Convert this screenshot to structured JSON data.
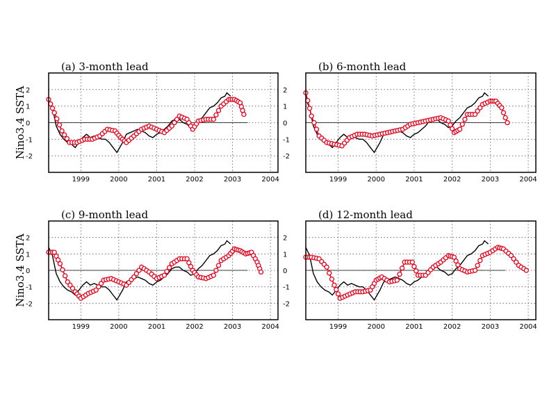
{
  "chart_data": [
    {
      "type": "line",
      "title": "(a) 3-month lead",
      "ylabel": "Nino3.4  SSTA",
      "xlim": [
        1998.15,
        2004.2
      ],
      "ylim": [
        -3,
        3
      ],
      "xticks": [
        1999,
        2000,
        2001,
        2002,
        2003,
        2004
      ],
      "yticks": [
        -2,
        -1,
        0,
        1,
        2
      ],
      "grid": true,
      "series": [
        {
          "role": "observed",
          "x": [
            1998.15,
            1998.25,
            1998.35,
            1998.45,
            1998.55,
            1998.65,
            1998.75,
            1998.85,
            1998.95,
            1999.05,
            1999.15,
            1999.25,
            1999.35,
            1999.45,
            1999.55,
            1999.65,
            1999.75,
            1999.85,
            1999.95,
            2000.0,
            2000.1,
            2000.2,
            2000.3,
            2000.4,
            2000.5,
            2000.6,
            2000.7,
            2000.8,
            2000.9,
            2001.0,
            2001.1,
            2001.2,
            2001.3,
            2001.4,
            2001.5,
            2001.6,
            2001.7,
            2001.8,
            2001.9,
            2002.0,
            2002.1,
            2002.2,
            2002.3,
            2002.4,
            2002.5,
            2002.6,
            2002.7,
            2002.8,
            2002.85,
            2002.95
          ],
          "y": [
            1.4,
            0.9,
            -0.2,
            -0.7,
            -1.0,
            -1.2,
            -1.3,
            -1.5,
            -1.2,
            -0.9,
            -0.7,
            -0.9,
            -0.8,
            -0.9,
            -1.0,
            -1.0,
            -1.2,
            -1.5,
            -1.8,
            -1.6,
            -1.2,
            -0.7,
            -0.6,
            -0.5,
            -0.4,
            -0.5,
            -0.6,
            -0.8,
            -0.9,
            -0.7,
            -0.6,
            -0.4,
            -0.2,
            0.1,
            0.2,
            0.2,
            0.0,
            -0.1,
            -0.3,
            -0.2,
            0.1,
            0.3,
            0.6,
            0.9,
            1.0,
            1.2,
            1.5,
            1.6,
            1.8,
            1.6
          ]
        },
        {
          "role": "forecast",
          "x": [
            1998.15,
            1998.3,
            1998.5,
            1998.7,
            1998.9,
            1999.1,
            1999.3,
            1999.5,
            1999.7,
            1999.9,
            2000.05,
            2000.2,
            2000.4,
            2000.6,
            2000.8,
            2001.0,
            2001.2,
            2001.4,
            2001.6,
            2001.8,
            2001.95,
            2002.1,
            2002.3,
            2002.5,
            2002.7,
            2002.9,
            2003.05,
            2003.2,
            2003.3
          ],
          "y": [
            1.4,
            0.6,
            -0.5,
            -1.2,
            -1.2,
            -1.0,
            -1.0,
            -0.8,
            -0.4,
            -0.5,
            -0.9,
            -1.2,
            -0.8,
            -0.4,
            -0.2,
            -0.4,
            -0.6,
            -0.2,
            0.4,
            0.2,
            -0.4,
            0.1,
            0.2,
            0.2,
            1.0,
            1.4,
            1.4,
            1.2,
            0.5
          ]
        }
      ]
    },
    {
      "type": "line",
      "title": "(b) 6-month lead",
      "ylabel": "",
      "xlim": [
        1998.15,
        2004.2
      ],
      "ylim": [
        -3,
        3
      ],
      "xticks": [
        1999,
        2000,
        2001,
        2002,
        2003,
        2004
      ],
      "yticks": [
        -2,
        -1,
        0,
        1,
        2
      ],
      "grid": true,
      "series": [
        {
          "role": "observed",
          "x": [
            1998.15,
            1998.25,
            1998.35,
            1998.45,
            1998.55,
            1998.65,
            1998.75,
            1998.85,
            1998.95,
            1999.05,
            1999.15,
            1999.25,
            1999.35,
            1999.45,
            1999.55,
            1999.65,
            1999.75,
            1999.85,
            1999.95,
            2000.0,
            2000.1,
            2000.2,
            2000.3,
            2000.4,
            2000.5,
            2000.6,
            2000.7,
            2000.8,
            2000.9,
            2001.0,
            2001.1,
            2001.2,
            2001.3,
            2001.4,
            2001.5,
            2001.6,
            2001.7,
            2001.8,
            2001.9,
            2002.0,
            2002.1,
            2002.2,
            2002.3,
            2002.4,
            2002.5,
            2002.6,
            2002.7,
            2002.8,
            2002.85,
            2002.95
          ],
          "y": [
            1.4,
            0.9,
            -0.2,
            -0.7,
            -1.0,
            -1.2,
            -1.3,
            -1.5,
            -1.2,
            -0.9,
            -0.7,
            -0.9,
            -0.8,
            -0.9,
            -1.0,
            -1.0,
            -1.2,
            -1.5,
            -1.8,
            -1.6,
            -1.2,
            -0.7,
            -0.6,
            -0.5,
            -0.4,
            -0.5,
            -0.6,
            -0.8,
            -0.9,
            -0.7,
            -0.6,
            -0.4,
            -0.2,
            0.1,
            0.2,
            0.2,
            0.0,
            -0.1,
            -0.3,
            -0.2,
            0.1,
            0.3,
            0.6,
            0.9,
            1.0,
            1.2,
            1.5,
            1.6,
            1.8,
            1.6
          ]
        },
        {
          "role": "forecast",
          "x": [
            1998.15,
            1998.3,
            1998.5,
            1998.7,
            1998.9,
            1999.1,
            1999.3,
            1999.5,
            1999.7,
            1999.9,
            2000.1,
            2000.3,
            2000.5,
            2000.7,
            2000.9,
            2001.1,
            2001.3,
            2001.5,
            2001.7,
            2001.9,
            2002.05,
            2002.2,
            2002.4,
            2002.6,
            2002.8,
            2003.0,
            2003.15,
            2003.3,
            2003.45
          ],
          "y": [
            1.8,
            0.4,
            -0.8,
            -1.2,
            -1.3,
            -1.4,
            -0.9,
            -0.7,
            -0.7,
            -0.8,
            -0.7,
            -0.6,
            -0.5,
            -0.4,
            -0.1,
            0.0,
            0.1,
            0.2,
            0.3,
            0.1,
            -0.6,
            -0.4,
            0.5,
            0.5,
            1.1,
            1.3,
            1.3,
            0.9,
            0.0
          ]
        }
      ]
    },
    {
      "type": "line",
      "title": "(c) 9-month lead",
      "ylabel": "Nino3.4  SSTA",
      "xlim": [
        1998.15,
        2004.2
      ],
      "ylim": [
        -3,
        3
      ],
      "xticks": [
        1999,
        2000,
        2001,
        2002,
        2003,
        2004
      ],
      "yticks": [
        -2,
        -1,
        0,
        1,
        2
      ],
      "grid": true,
      "series": [
        {
          "role": "observed",
          "x": [
            1998.15,
            1998.25,
            1998.35,
            1998.45,
            1998.55,
            1998.65,
            1998.75,
            1998.85,
            1998.95,
            1999.05,
            1999.15,
            1999.25,
            1999.35,
            1999.45,
            1999.55,
            1999.65,
            1999.75,
            1999.85,
            1999.95,
            2000.0,
            2000.1,
            2000.2,
            2000.3,
            2000.4,
            2000.5,
            2000.6,
            2000.7,
            2000.8,
            2000.9,
            2001.0,
            2001.1,
            2001.2,
            2001.3,
            2001.4,
            2001.5,
            2001.6,
            2001.7,
            2001.8,
            2001.9,
            2002.0,
            2002.1,
            2002.2,
            2002.3,
            2002.4,
            2002.5,
            2002.6,
            2002.7,
            2002.8,
            2002.85,
            2002.95
          ],
          "y": [
            1.4,
            0.9,
            -0.2,
            -0.7,
            -1.0,
            -1.2,
            -1.3,
            -1.5,
            -1.2,
            -0.9,
            -0.7,
            -0.9,
            -0.8,
            -0.9,
            -1.0,
            -1.0,
            -1.2,
            -1.5,
            -1.8,
            -1.6,
            -1.2,
            -0.7,
            -0.6,
            -0.5,
            -0.4,
            -0.5,
            -0.6,
            -0.8,
            -0.9,
            -0.7,
            -0.6,
            -0.4,
            -0.2,
            0.1,
            0.2,
            0.2,
            0.0,
            -0.1,
            -0.3,
            -0.2,
            0.1,
            0.3,
            0.6,
            0.9,
            1.0,
            1.2,
            1.5,
            1.6,
            1.8,
            1.6
          ]
        },
        {
          "role": "forecast",
          "x": [
            1998.15,
            1998.3,
            1998.45,
            1998.65,
            1998.85,
            1999.0,
            1999.2,
            1999.4,
            1999.6,
            1999.8,
            2000.0,
            2000.2,
            2000.4,
            2000.6,
            2000.8,
            2001.0,
            2001.2,
            2001.4,
            2001.6,
            2001.8,
            2001.95,
            2002.1,
            2002.3,
            2002.5,
            2002.7,
            2002.9,
            2003.05,
            2003.2,
            2003.35,
            2003.5,
            2003.65,
            2003.75
          ],
          "y": [
            1.1,
            1.1,
            0.4,
            -0.7,
            -1.3,
            -1.7,
            -1.4,
            -1.2,
            -0.6,
            -0.5,
            -0.7,
            -0.9,
            -0.4,
            0.2,
            -0.1,
            -0.5,
            -0.3,
            0.4,
            0.7,
            0.7,
            0.0,
            -0.4,
            -0.5,
            -0.3,
            0.6,
            0.9,
            1.3,
            1.2,
            1.0,
            1.1,
            0.5,
            -0.1
          ]
        }
      ]
    },
    {
      "type": "line",
      "title": "(d) 12-month lead",
      "ylabel": "",
      "xlim": [
        1998.15,
        2004.2
      ],
      "ylim": [
        -3,
        3
      ],
      "xticks": [
        1999,
        2000,
        2001,
        2002,
        2003,
        2004
      ],
      "yticks": [
        -2,
        -1,
        0,
        1,
        2
      ],
      "grid": true,
      "series": [
        {
          "role": "observed",
          "x": [
            1998.15,
            1998.25,
            1998.35,
            1998.45,
            1998.55,
            1998.65,
            1998.75,
            1998.85,
            1998.95,
            1999.05,
            1999.15,
            1999.25,
            1999.35,
            1999.45,
            1999.55,
            1999.65,
            1999.75,
            1999.85,
            1999.95,
            2000.0,
            2000.1,
            2000.2,
            2000.3,
            2000.4,
            2000.5,
            2000.6,
            2000.7,
            2000.8,
            2000.9,
            2001.0,
            2001.1,
            2001.2,
            2001.3,
            2001.4,
            2001.5,
            2001.6,
            2001.7,
            2001.8,
            2001.9,
            2002.0,
            2002.1,
            2002.2,
            2002.3,
            2002.4,
            2002.5,
            2002.6,
            2002.7,
            2002.8,
            2002.85,
            2002.95
          ],
          "y": [
            1.4,
            0.9,
            -0.2,
            -0.7,
            -1.0,
            -1.2,
            -1.3,
            -1.5,
            -1.2,
            -0.9,
            -0.7,
            -0.9,
            -0.8,
            -0.9,
            -1.0,
            -1.0,
            -1.2,
            -1.5,
            -1.8,
            -1.6,
            -1.2,
            -0.7,
            -0.6,
            -0.5,
            -0.4,
            -0.5,
            -0.6,
            -0.8,
            -0.9,
            -0.7,
            -0.6,
            -0.4,
            -0.2,
            0.1,
            0.2,
            0.2,
            0.0,
            -0.1,
            -0.3,
            -0.2,
            0.1,
            0.3,
            0.6,
            0.9,
            1.0,
            1.2,
            1.5,
            1.6,
            1.8,
            1.6
          ]
        },
        {
          "role": "forecast",
          "x": [
            1998.15,
            1998.3,
            1998.5,
            1998.7,
            1998.9,
            1999.05,
            1999.25,
            1999.45,
            1999.65,
            1999.85,
            2000.0,
            2000.15,
            2000.35,
            2000.55,
            2000.75,
            2000.95,
            2001.1,
            2001.3,
            2001.5,
            2001.7,
            2001.9,
            2002.05,
            2002.2,
            2002.4,
            2002.6,
            2002.8,
            2003.0,
            2003.2,
            2003.35,
            2003.55,
            2003.75,
            2003.95
          ],
          "y": [
            0.8,
            0.8,
            0.7,
            0.2,
            -0.9,
            -1.7,
            -1.5,
            -1.3,
            -1.3,
            -1.2,
            -0.6,
            -0.4,
            -0.7,
            -0.6,
            0.5,
            0.5,
            -0.3,
            -0.3,
            0.2,
            0.5,
            0.9,
            0.8,
            0.1,
            -0.1,
            0.0,
            0.9,
            1.1,
            1.4,
            1.3,
            0.9,
            0.3,
            0.0
          ]
        }
      ]
    }
  ],
  "colors": {
    "observed": "#000000",
    "forecast": "#e8001a"
  }
}
